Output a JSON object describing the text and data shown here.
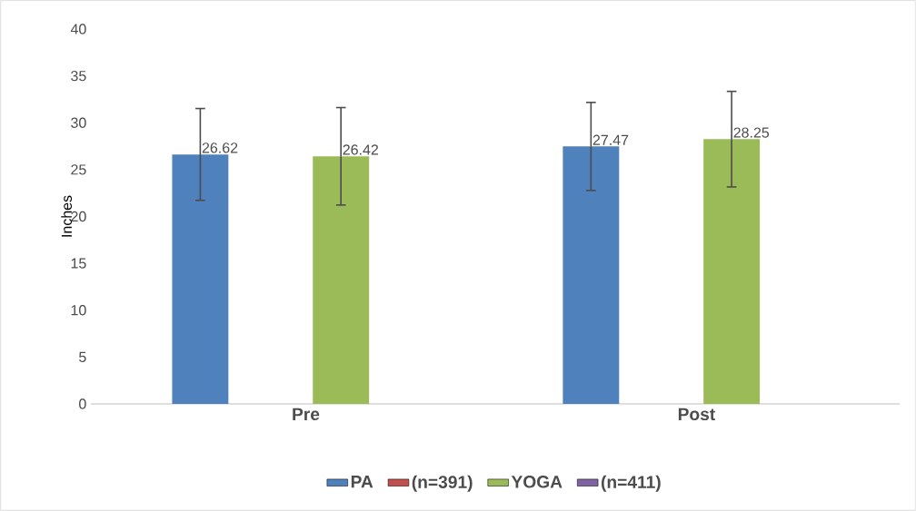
{
  "chart_data": {
    "type": "bar",
    "ylabel": "Inches",
    "categories": [
      "Pre",
      "Post"
    ],
    "series": [
      {
        "name": "PA",
        "color": "#4f81bd",
        "values": [
          26.62,
          27.47
        ],
        "errors": [
          4.9,
          4.7
        ]
      },
      {
        "name": "(n=391)",
        "color": "#c0504d",
        "values": [
          null,
          null
        ]
      },
      {
        "name": "YOGA",
        "color": "#9bbb59",
        "values": [
          26.42,
          28.25
        ],
        "errors": [
          5.2,
          5.1
        ]
      },
      {
        "name": "(n=411)",
        "color": "#8064a2",
        "values": [
          null,
          null
        ]
      }
    ],
    "ylim": [
      0,
      40
    ],
    "yticks": [
      0,
      5,
      10,
      15,
      20,
      25,
      30,
      35,
      40
    ],
    "data_labels": true,
    "legend": "bottom"
  }
}
